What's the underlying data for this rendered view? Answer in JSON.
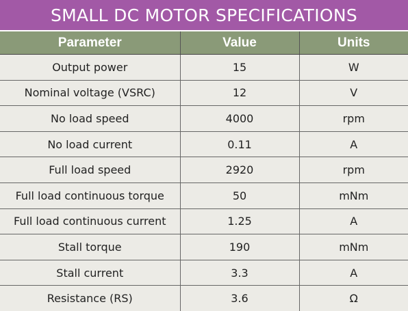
{
  "title": "SMALL DC MOTOR SPECIFICATIONS",
  "columns": {
    "parameter": "Parameter",
    "value": "Value",
    "units": "Units"
  },
  "rows": [
    {
      "parameter": "Output power",
      "value": "15",
      "units": "W"
    },
    {
      "parameter": "Nominal voltage (VSRC)",
      "value": "12",
      "units": "V"
    },
    {
      "parameter": "No load speed",
      "value": "4000",
      "units": "rpm"
    },
    {
      "parameter": "No load current",
      "value": "0.11",
      "units": "A"
    },
    {
      "parameter": "Full load speed",
      "value": "2920",
      "units": "rpm"
    },
    {
      "parameter": "Full load continuous torque",
      "value": "50",
      "units": "mNm"
    },
    {
      "parameter": "Full load continuous current",
      "value": "1.25",
      "units": "A"
    },
    {
      "parameter": "Stall torque",
      "value": "190",
      "units": "mNm"
    },
    {
      "parameter": "Stall current",
      "value": "3.3",
      "units": "A"
    },
    {
      "parameter": "Resistance (RS)",
      "value": "3.6",
      "units": "Ω"
    }
  ],
  "colors": {
    "title_bar": "#a259a6",
    "header_bar": "#8a9a78",
    "body_background": "#ecebe6"
  }
}
